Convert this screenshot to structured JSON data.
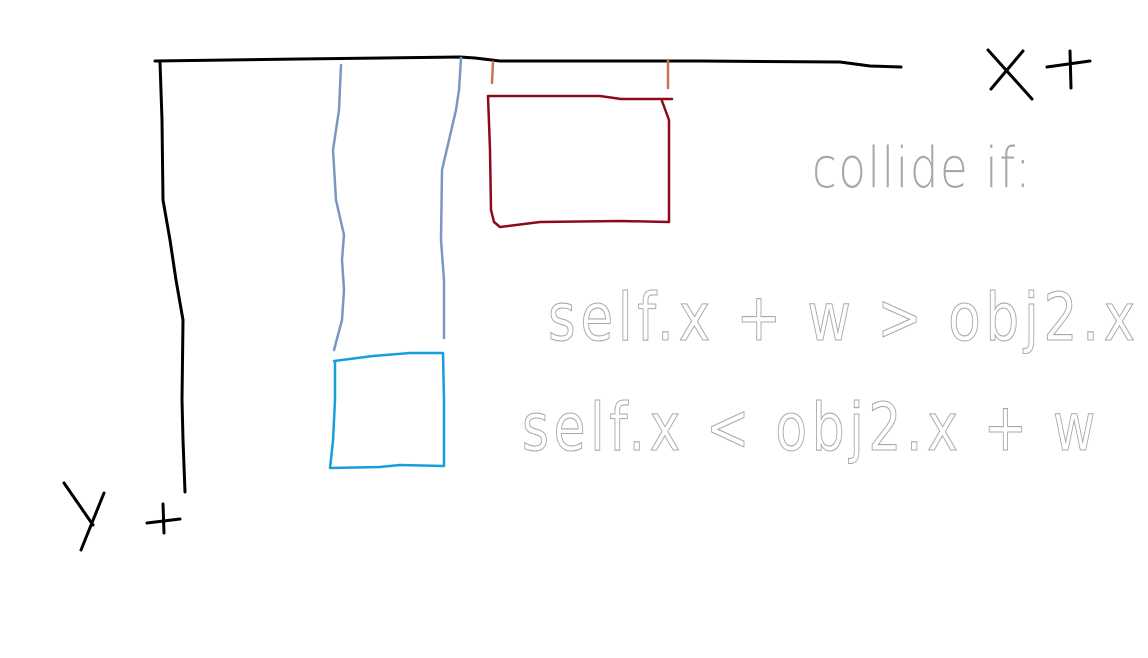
{
  "labels": {
    "x_axis": "X +",
    "y_axis": "Y +"
  },
  "annotation": {
    "heading": "collide if:",
    "conditions": [
      "self.x + w > obj2.x",
      "self.x < obj2.x + w"
    ]
  },
  "colors": {
    "axis": "#000000",
    "guide_lines": "#7a97c1",
    "object_red": "#8b0a1e",
    "object_blue": "#15a0dc",
    "edge_ticks": "#c2774e",
    "annotation_text": "#a8a8a8"
  }
}
